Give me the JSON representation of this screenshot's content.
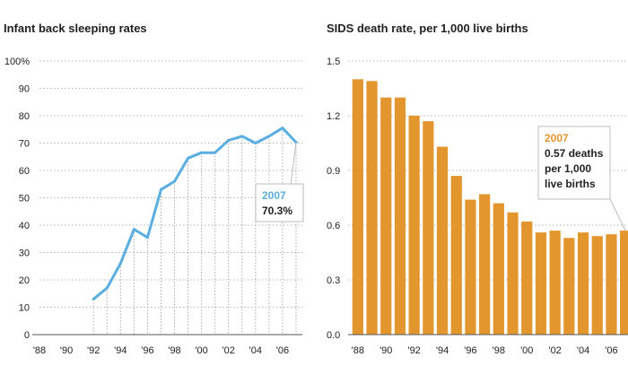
{
  "colors": {
    "line": "#5aaee0",
    "bar": "#e3952e"
  },
  "chart_data": [
    {
      "type": "line",
      "title": "Infant back sleeping rates",
      "yticks": [
        "0",
        "10",
        "20",
        "30",
        "40",
        "50",
        "60",
        "70",
        "80",
        "90",
        "100%"
      ],
      "ylim": [
        0,
        100
      ],
      "xticks": [
        "'88",
        "'90",
        "'92",
        "'94",
        "'96",
        "'98",
        "'00",
        "'02",
        "'04",
        "'06"
      ],
      "xlim": [
        1988,
        2007
      ],
      "grid": true,
      "x": [
        1992,
        1993,
        1994,
        1995,
        1996,
        1997,
        1998,
        1999,
        2000,
        2001,
        2002,
        2003,
        2004,
        2005,
        2006,
        2007
      ],
      "values": [
        13,
        17,
        26,
        38.5,
        35.5,
        53,
        56,
        64.5,
        66.5,
        66.5,
        71,
        72.5,
        70,
        72.5,
        75.5,
        70.3
      ],
      "annotation": {
        "year": "2007",
        "lines": [
          "70.3%"
        ]
      }
    },
    {
      "type": "bar",
      "title": "SIDS death rate, per 1,000 live births",
      "yticks": [
        "0.0",
        "0.3",
        "0.6",
        "0.9",
        "1.2",
        "1.5"
      ],
      "ylim": [
        0,
        1.5
      ],
      "xticks": [
        "'88",
        "'90",
        "'92",
        "'94",
        "'96",
        "'98",
        "'00",
        "'02",
        "'04",
        "'06"
      ],
      "grid": true,
      "categories": [
        1988,
        1989,
        1990,
        1991,
        1992,
        1993,
        1994,
        1995,
        1996,
        1997,
        1998,
        1999,
        2000,
        2001,
        2002,
        2003,
        2004,
        2005,
        2006,
        2007
      ],
      "values": [
        1.4,
        1.39,
        1.3,
        1.3,
        1.2,
        1.17,
        1.03,
        0.87,
        0.74,
        0.77,
        0.72,
        0.67,
        0.62,
        0.56,
        0.57,
        0.53,
        0.56,
        0.54,
        0.55,
        0.57
      ],
      "annotation": {
        "year": "2007",
        "lines": [
          "0.57 deaths",
          "per 1,000",
          "live births"
        ]
      }
    }
  ]
}
